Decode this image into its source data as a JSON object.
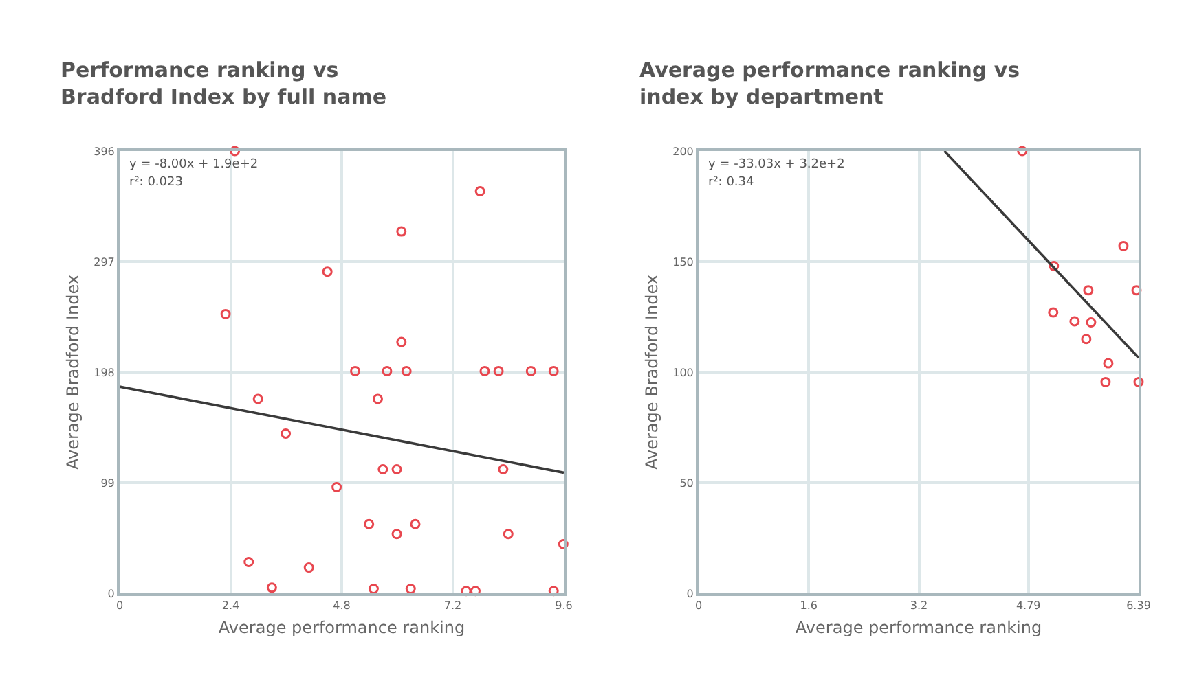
{
  "chart_data": [
    {
      "type": "scatter",
      "title": "Performance ranking vs\nBradford Index by full name",
      "xlabel": "Average performance ranking",
      "ylabel": "Average Bradford Index",
      "series": [
        {
          "color": "#e8474f",
          "marker": "circle",
          "x": [
            2.49,
            7.79,
            6.09,
            4.49,
            2.29,
            6.09,
            5.09,
            5.78,
            6.2,
            7.89,
            8.19,
            8.89,
            9.38,
            2.99,
            5.58,
            3.59,
            5.69,
            5.99,
            8.29,
            4.69,
            5.39,
            6.39,
            5.99,
            8.4,
            9.59,
            2.79,
            4.09,
            3.29,
            5.49,
            6.29,
            7.49,
            7.69,
            9.38
          ],
          "values": [
            396,
            360,
            324,
            288,
            250,
            225,
            199,
            199,
            199,
            199,
            199,
            199,
            199,
            174,
            174,
            143,
            111,
            111,
            111,
            95,
            62,
            62,
            53,
            53,
            44,
            28,
            23,
            5,
            4,
            4,
            2,
            2,
            2
          ]
        },
        {
          "type": "line",
          "color": "#3a3a3a",
          "x": [
            0,
            9.6
          ],
          "values": [
            185,
            108
          ]
        }
      ],
      "xlim": [
        0,
        9.6
      ],
      "ylim": [
        0,
        396
      ],
      "xticks": [
        0,
        2.4,
        4.8,
        7.2,
        9.6
      ],
      "yticks": [
        0,
        99,
        198,
        297,
        396
      ],
      "grid": true,
      "annotations": [
        "y = -8.00x + 1.9e+2",
        "r²: 0.023"
      ]
    },
    {
      "type": "scatter",
      "title": "Average performance ranking vs\nindex by department",
      "xlabel": "Average performance ranking",
      "ylabel": "Average Bradford Index",
      "series": [
        {
          "color": "#e8474f",
          "marker": "circle",
          "x": [
            4.7,
            6.17,
            5.16,
            5.66,
            6.36,
            5.15,
            5.46,
            5.7,
            5.63,
            5.95,
            5.91,
            6.39
          ],
          "values": [
            200,
            157,
            148,
            137,
            137,
            127,
            123,
            122.5,
            115,
            104,
            95.5,
            95.5
          ]
        },
        {
          "type": "line",
          "color": "#3a3a3a",
          "x": [
            3.57,
            6.39
          ],
          "values": [
            200,
            106.5
          ]
        }
      ],
      "xlim": [
        0,
        6.39
      ],
      "ylim": [
        0,
        200
      ],
      "xticks": [
        0,
        1.6,
        3.2,
        4.79,
        6.39
      ],
      "yticks": [
        0,
        50,
        100,
        150,
        200
      ],
      "grid": true,
      "annotations": [
        "y = -33.03x + 3.2e+2",
        "r²: 0.34"
      ]
    }
  ]
}
